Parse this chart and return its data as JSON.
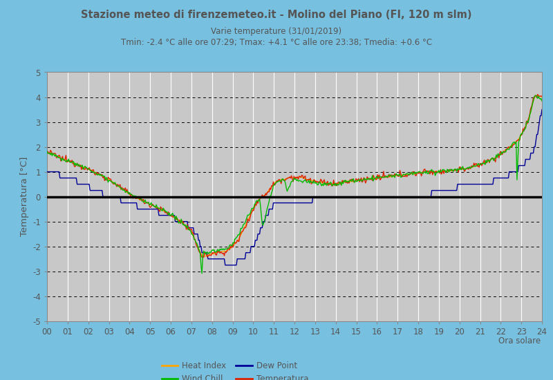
{
  "title1": "Stazione meteo di firenzemeteo.it - Molino del Piano (FI, 120 m slm)",
  "title2": "Varie temperature (31/01/2019)",
  "title3": "Tmin: -2.4 °C alle ore 07:29; Tmax: +4.1 °C alle ore 23:38; Tmedia: +0.6 °C",
  "xlabel": "Ora solare",
  "ylabel": "Temperatura [°C]",
  "xlim": [
    0,
    24
  ],
  "ylim": [
    -5,
    5
  ],
  "yticks": [
    -5,
    -4,
    -3,
    -2,
    -1,
    0,
    1,
    2,
    3,
    4,
    5
  ],
  "xticks": [
    0,
    1,
    2,
    3,
    4,
    5,
    6,
    7,
    8,
    9,
    10,
    11,
    12,
    13,
    14,
    15,
    16,
    17,
    18,
    19,
    20,
    21,
    22,
    23,
    24
  ],
  "xtick_labels": [
    "00",
    "01",
    "02",
    "03",
    "04",
    "05",
    "06",
    "07",
    "08",
    "09",
    "10",
    "11",
    "12",
    "13",
    "14",
    "15",
    "16",
    "17",
    "18",
    "19",
    "20",
    "21",
    "22",
    "23",
    "24"
  ],
  "fig_bg_color": "#78C0E0",
  "plot_bg_color": "#C8C8C8",
  "color_temp": "#DD2200",
  "color_heat": "#FFA500",
  "color_wind": "#00BB00",
  "color_dew": "#000099",
  "zero_line_color": "#000000",
  "title_color": "#555555",
  "grid_dash_color": "#000000",
  "grid_vert_color": "#FFFFFF"
}
